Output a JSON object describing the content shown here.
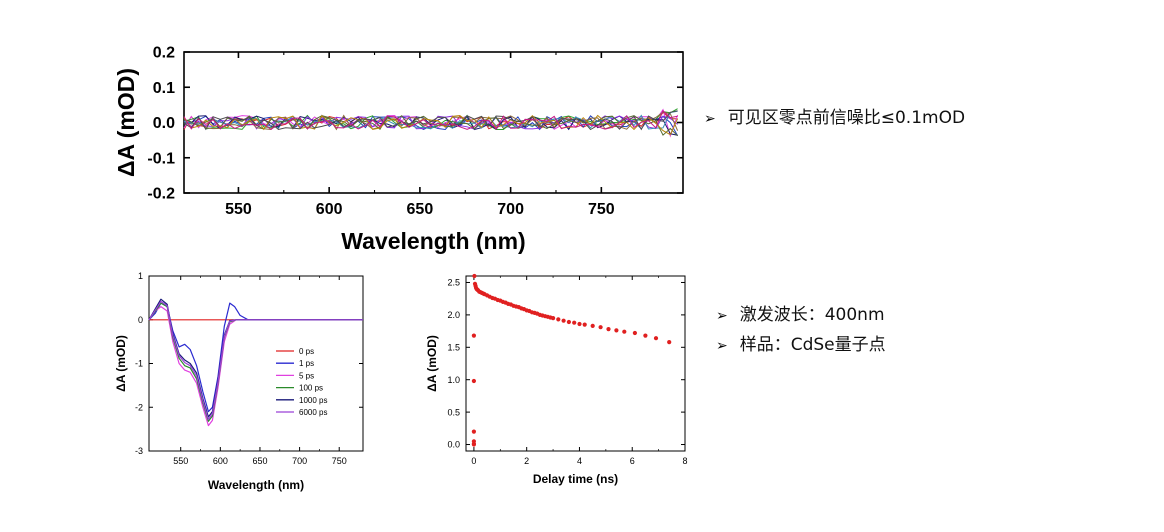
{
  "charts": [
    {
      "id": "baseline",
      "chart_data": {
        "type": "line",
        "title": "",
        "xlabel": "Wavelength (nm)",
        "ylabel": "ΔA (mOD)",
        "xlim": [
          520,
          795
        ],
        "ylim": [
          -0.2,
          0.2
        ],
        "xticks": [
          550,
          600,
          650,
          700,
          750
        ],
        "yticks": [
          -0.2,
          -0.1,
          0.0,
          0.1,
          0.2
        ],
        "xtick_labels": [
          "550",
          "600",
          "650",
          "700",
          "750"
        ],
        "ytick_labels": [
          "-0.2",
          "-0.1",
          "0.0",
          "0.1",
          "0.2"
        ],
        "noise_amplitude": 0.02,
        "series_count": 12,
        "series_colors": [
          "#d62728",
          "#1f3fbf",
          "#e040e0",
          "#2ca02c",
          "#1a1a6e",
          "#8a2be2",
          "#8b6b3d",
          "#3a8fb7",
          "#556b2f",
          "#b8860b",
          "#4d4d4d",
          "#c71585"
        ]
      }
    },
    {
      "id": "spectra",
      "chart_data": {
        "type": "line",
        "xlabel": "Wavelength (nm)",
        "ylabel": "ΔA (mOD)",
        "xlim": [
          510,
          780
        ],
        "ylim": [
          -3,
          1
        ],
        "xticks": [
          550,
          600,
          650,
          700,
          750
        ],
        "yticks": [
          -3,
          -2,
          -1,
          0,
          1
        ],
        "xtick_labels": [
          "550",
          "600",
          "650",
          "700",
          "750"
        ],
        "ytick_labels": [
          "-3",
          "-2",
          "-1",
          "0",
          "1"
        ],
        "legend_position": "center-right",
        "series": [
          {
            "name": "0 ps",
            "color": "#e02020",
            "x": [
              510,
              530,
              560,
              580,
              600,
              620,
              650,
              700,
              780
            ],
            "y": [
              0.0,
              0.0,
              0.0,
              0.0,
              0.0,
              0.0,
              0.0,
              0.0,
              0.0
            ]
          },
          {
            "name": "1 ps",
            "color": "#2a2ad0",
            "x": [
              510,
              518,
              525,
              533,
              540,
              548,
              555,
              562,
              570,
              578,
              585,
              590,
              597,
              605,
              612,
              618,
              625,
              635,
              650,
              680,
              720,
              780
            ],
            "y": [
              0.0,
              0.15,
              0.38,
              0.3,
              -0.25,
              -0.62,
              -0.56,
              -0.68,
              -1.05,
              -1.65,
              -2.1,
              -2.0,
              -1.3,
              -0.15,
              0.38,
              0.3,
              0.1,
              0.0,
              0.0,
              0.0,
              0.0,
              0.0
            ]
          },
          {
            "name": "5 ps",
            "color": "#e040e0",
            "x": [
              510,
              518,
              525,
              533,
              540,
              548,
              555,
              562,
              570,
              578,
              585,
              590,
              597,
              605,
              612,
              620,
              630,
              650,
              700,
              780
            ],
            "y": [
              0.0,
              0.2,
              0.3,
              0.2,
              -0.5,
              -1.0,
              -1.15,
              -1.2,
              -1.45,
              -2.0,
              -2.42,
              -2.3,
              -1.55,
              -0.5,
              -0.1,
              0.0,
              0.0,
              0.0,
              0.0,
              0.0
            ]
          },
          {
            "name": "100 ps",
            "color": "#2a8a2a",
            "x": [
              510,
              518,
              525,
              533,
              540,
              548,
              555,
              562,
              570,
              578,
              585,
              590,
              597,
              605,
              612,
              620,
              630,
              650,
              700,
              780
            ],
            "y": [
              0.0,
              0.2,
              0.38,
              0.3,
              -0.4,
              -0.88,
              -1.05,
              -1.1,
              -1.35,
              -1.9,
              -2.32,
              -2.2,
              -1.45,
              -0.4,
              -0.05,
              0.0,
              0.0,
              0.0,
              0.0,
              0.0
            ]
          },
          {
            "name": "1000 ps",
            "color": "#1a1a7a",
            "x": [
              510,
              518,
              525,
              533,
              540,
              548,
              555,
              562,
              570,
              578,
              585,
              590,
              597,
              605,
              612,
              620,
              630,
              650,
              700,
              780
            ],
            "y": [
              0.0,
              0.25,
              0.47,
              0.35,
              -0.32,
              -0.78,
              -0.92,
              -1.0,
              -1.22,
              -1.8,
              -2.22,
              -2.1,
              -1.38,
              -0.35,
              -0.02,
              0.0,
              0.0,
              0.0,
              0.0,
              0.0
            ]
          },
          {
            "name": "6000 ps",
            "color": "#9a40d8",
            "x": [
              510,
              518,
              525,
              533,
              540,
              548,
              555,
              562,
              570,
              578,
              585,
              590,
              597,
              605,
              612,
              620,
              630,
              650,
              700,
              780
            ],
            "y": [
              0.0,
              0.22,
              0.42,
              0.32,
              -0.36,
              -0.82,
              -0.98,
              -1.05,
              -1.28,
              -1.85,
              -2.28,
              -2.15,
              -1.42,
              -0.38,
              -0.03,
              0.0,
              0.0,
              0.0,
              0.0,
              0.0
            ]
          }
        ]
      }
    },
    {
      "id": "kinetics",
      "chart_data": {
        "type": "scatter",
        "xlabel": "Delay time (ns)",
        "ylabel": "ΔA (mOD)",
        "xlim": [
          -0.3,
          8
        ],
        "ylim": [
          -0.1,
          2.6
        ],
        "xticks": [
          0,
          2,
          4,
          6,
          8
        ],
        "yticks": [
          0.0,
          0.5,
          1.0,
          1.5,
          2.0,
          2.5
        ],
        "xtick_labels": [
          "0",
          "2",
          "4",
          "6",
          "8"
        ],
        "ytick_labels": [
          "0.0",
          "0.5",
          "1.0",
          "1.5",
          "2.0",
          "2.5"
        ],
        "marker_color": "#e02020",
        "x": [
          0.0,
          0.0,
          0.0,
          0.0,
          0.0,
          0.0,
          0.02,
          0.04,
          0.06,
          0.08,
          0.1,
          0.13,
          0.16,
          0.2,
          0.25,
          0.3,
          0.35,
          0.4,
          0.5,
          0.6,
          0.7,
          0.8,
          0.9,
          1.0,
          1.1,
          1.2,
          1.3,
          1.4,
          1.5,
          1.6,
          1.7,
          1.8,
          1.9,
          2.0,
          2.1,
          2.2,
          2.3,
          2.4,
          2.5,
          2.6,
          2.7,
          2.8,
          2.9,
          3.0,
          3.2,
          3.4,
          3.6,
          3.8,
          4.0,
          4.2,
          4.5,
          4.8,
          5.1,
          5.4,
          5.7,
          6.1,
          6.5,
          6.9,
          7.4
        ],
        "y": [
          0.0,
          0.01,
          0.05,
          0.2,
          0.98,
          1.68,
          2.6,
          2.48,
          2.45,
          2.42,
          2.4,
          2.39,
          2.38,
          2.36,
          2.35,
          2.34,
          2.33,
          2.32,
          2.3,
          2.28,
          2.26,
          2.25,
          2.23,
          2.22,
          2.2,
          2.19,
          2.17,
          2.16,
          2.14,
          2.13,
          2.12,
          2.1,
          2.09,
          2.07,
          2.06,
          2.04,
          2.03,
          2.02,
          2.0,
          1.99,
          1.98,
          1.97,
          1.96,
          1.95,
          1.93,
          1.91,
          1.89,
          1.88,
          1.86,
          1.85,
          1.83,
          1.81,
          1.78,
          1.76,
          1.74,
          1.72,
          1.68,
          1.64,
          1.58
        ]
      }
    }
  ],
  "bullets": {
    "top": [
      {
        "arrow": "➢",
        "text": "可见区零点前信噪比≤0.1mOD"
      }
    ],
    "bottom": [
      {
        "arrow": "➢",
        "text": "激发波长：400nm"
      },
      {
        "arrow": "➢",
        "text": "样品：CdSe量子点"
      }
    ]
  }
}
